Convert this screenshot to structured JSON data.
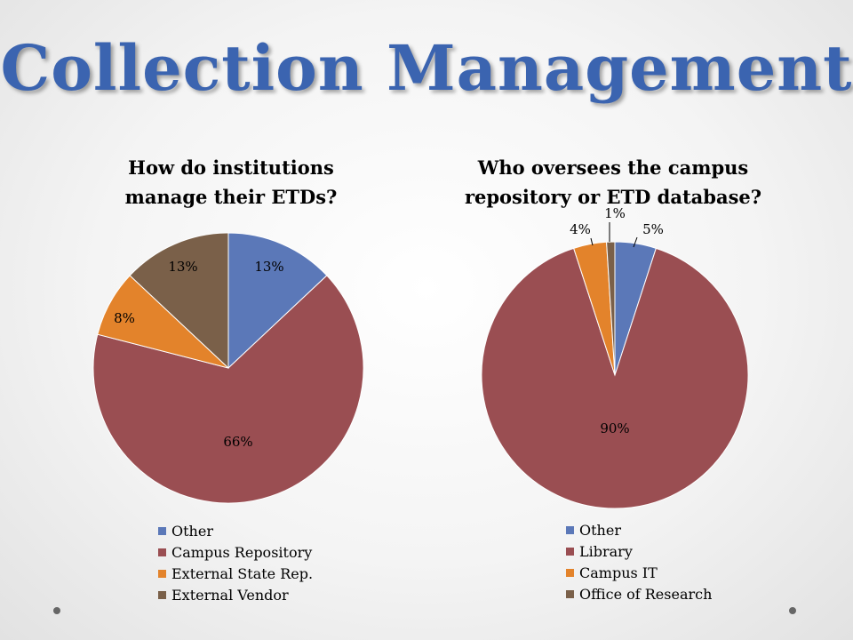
{
  "slide": {
    "title": "Collection Management"
  },
  "chart_data": [
    {
      "type": "pie",
      "title": "How do institutions manage their ETDs?",
      "categories": [
        "Other",
        "Campus Repository",
        "External State Rep.",
        "External Vendor"
      ],
      "values": [
        13,
        66,
        8,
        13
      ],
      "labels": [
        "13%",
        "66%",
        "8%",
        "13%"
      ],
      "colors": [
        "#5b78b8",
        "#9a4e52",
        "#e3832b",
        "#7a6049"
      ],
      "legend": "bottom"
    },
    {
      "type": "pie",
      "title": "Who oversees the campus repository or ETD database?",
      "categories": [
        "Other",
        "Library",
        "Campus IT",
        "Office of Research"
      ],
      "values": [
        5,
        90,
        4,
        1
      ],
      "labels": [
        "5%",
        "90%",
        "4%",
        "1%"
      ],
      "colors": [
        "#5b78b8",
        "#9a4e52",
        "#e3832b",
        "#7a6049"
      ],
      "legend": "bottom"
    }
  ]
}
